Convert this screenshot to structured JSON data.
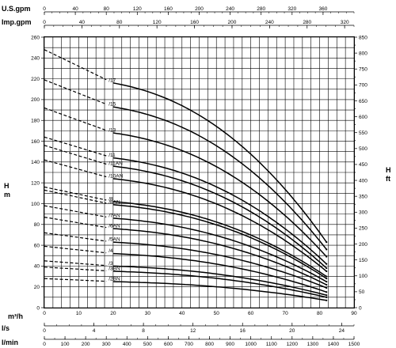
{
  "chart_data": {
    "type": "line",
    "y_left": {
      "label": "H",
      "unit": "m",
      "range": [
        0,
        260
      ],
      "step": 20
    },
    "y_right": {
      "label": "H",
      "unit": "ft",
      "range": [
        0,
        850
      ],
      "step": 50
    },
    "x_main": {
      "label": "m³/h",
      "range": [
        0,
        90
      ],
      "step": 10
    },
    "x_extra_axes": [
      {
        "label": "U.S.gpm",
        "range": [
          0,
          400
        ],
        "ticks": [
          0,
          40,
          80,
          120,
          160,
          200,
          240,
          280,
          320,
          360
        ]
      },
      {
        "label": "Imp.gpm",
        "range": [
          0,
          330
        ],
        "ticks": [
          0,
          40,
          80,
          120,
          160,
          200,
          240,
          280,
          320
        ]
      },
      {
        "label": "l/s",
        "range": [
          0,
          25
        ],
        "ticks": [
          0,
          4,
          8,
          12,
          16,
          20,
          24
        ]
      },
      {
        "label": "l/min",
        "range": [
          0,
          1500
        ],
        "ticks": [
          0,
          100,
          200,
          300,
          400,
          500,
          600,
          700,
          800,
          900,
          1000,
          1100,
          1200,
          1300,
          1400,
          1500
        ]
      }
    ],
    "grid": true,
    "curve_x_end": 82,
    "series": [
      {
        "name": "/17",
        "h_dashed_start": 248,
        "h_at_20": 216,
        "h_end": 63
      },
      {
        "name": "/15",
        "h_dashed_start": 219,
        "h_at_20": 193,
        "h_end": 56
      },
      {
        "name": "/13",
        "h_dashed_start": 192,
        "h_at_20": 168,
        "h_end": 49
      },
      {
        "name": "/11",
        "h_dashed_start": 164,
        "h_at_20": 144,
        "h_end": 42
      },
      {
        "name": "/11AN",
        "h_dashed_start": 156,
        "h_at_20": 136,
        "h_end": 38
      },
      {
        "name": "/10AN",
        "h_dashed_start": 142,
        "h_at_20": 124,
        "h_end": 35
      },
      {
        "name": "/8",
        "h_dashed_start": 116,
        "h_at_20": 102,
        "h_end": 30
      },
      {
        "name": "/8AN",
        "h_dashed_start": 113,
        "h_at_20": 99,
        "h_end": 28
      },
      {
        "name": "/7AN",
        "h_dashed_start": 98,
        "h_at_20": 86,
        "h_end": 25
      },
      {
        "name": "/6AN",
        "h_dashed_start": 87,
        "h_at_20": 76,
        "h_end": 22
      },
      {
        "name": "/5AN",
        "h_dashed_start": 72,
        "h_at_20": 63,
        "h_end": 19
      },
      {
        "name": "/4",
        "h_dashed_start": 59,
        "h_at_20": 52,
        "h_end": 15
      },
      {
        "name": "/3",
        "h_dashed_start": 45,
        "h_at_20": 40,
        "h_end": 12
      },
      {
        "name": "/3BN",
        "h_dashed_start": 39,
        "h_at_20": 35,
        "h_end": 10
      },
      {
        "name": "/2BN",
        "h_dashed_start": 28,
        "h_at_20": 25,
        "h_end": 7
      }
    ],
    "line_color": "#000000"
  }
}
